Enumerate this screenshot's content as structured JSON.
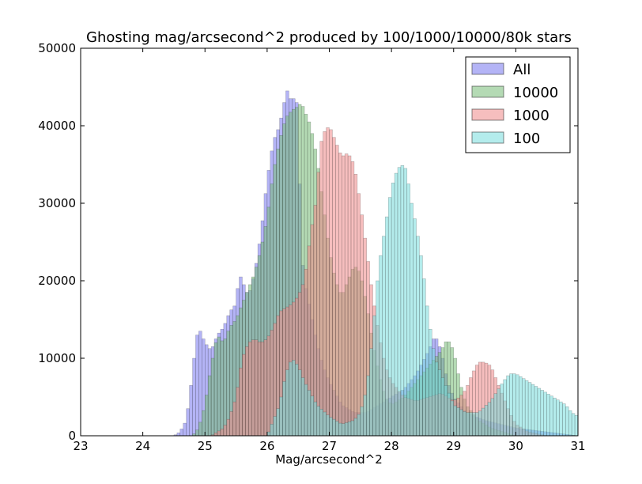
{
  "chart_data": {
    "type": "bar",
    "title": "Ghosting mag/arcsecond^2 produced by 100/1000/10000/80k stars",
    "xlabel": "Mag/arcsecond^2",
    "ylabel": "",
    "xlim": [
      23,
      31
    ],
    "ylim": [
      0,
      50000
    ],
    "xticks": [
      "23",
      "24",
      "25",
      "26",
      "27",
      "28",
      "29",
      "30",
      "31"
    ],
    "yticks": [
      "0",
      "10000",
      "20000",
      "30000",
      "40000",
      "50000"
    ],
    "bin_width": 0.05,
    "legend_position": "top-right",
    "series": [
      {
        "name": "All",
        "color": "#7777ee",
        "points": [
          [
            24.5,
            0
          ],
          [
            24.6,
            500
          ],
          [
            24.7,
            2000
          ],
          [
            24.8,
            8000
          ],
          [
            24.85,
            12000
          ],
          [
            24.9,
            14000
          ],
          [
            25.0,
            12000
          ],
          [
            25.1,
            11000
          ],
          [
            25.2,
            13000
          ],
          [
            25.3,
            14000
          ],
          [
            25.4,
            16000
          ],
          [
            25.5,
            17000
          ],
          [
            25.55,
            21000
          ],
          [
            25.6,
            20000
          ],
          [
            25.7,
            18000
          ],
          [
            25.8,
            21000
          ],
          [
            25.9,
            26000
          ],
          [
            26.0,
            33000
          ],
          [
            26.1,
            38000
          ],
          [
            26.2,
            40000
          ],
          [
            26.3,
            44000
          ],
          [
            26.35,
            45000
          ],
          [
            26.4,
            42000
          ],
          [
            26.45,
            45000
          ],
          [
            26.5,
            41000
          ],
          [
            26.55,
            24000
          ],
          [
            26.6,
            20000
          ],
          [
            26.7,
            16000
          ],
          [
            26.8,
            12000
          ],
          [
            26.9,
            9000
          ],
          [
            27.0,
            7000
          ],
          [
            27.2,
            4000
          ],
          [
            27.4,
            3000
          ],
          [
            27.6,
            3000
          ],
          [
            27.8,
            4000
          ],
          [
            28.0,
            5000
          ],
          [
            28.2,
            6000
          ],
          [
            28.4,
            8000
          ],
          [
            28.6,
            11000
          ],
          [
            28.7,
            13000
          ],
          [
            28.8,
            11000
          ],
          [
            28.9,
            7000
          ],
          [
            29.0,
            5000
          ],
          [
            29.2,
            3000
          ],
          [
            29.5,
            2000
          ],
          [
            30.0,
            1000
          ],
          [
            30.5,
            500
          ],
          [
            31.0,
            0
          ]
        ]
      },
      {
        "name": "10000",
        "color": "#77bb77",
        "points": [
          [
            24.8,
            0
          ],
          [
            24.9,
            1000
          ],
          [
            25.0,
            4000
          ],
          [
            25.1,
            9000
          ],
          [
            25.2,
            13000
          ],
          [
            25.3,
            12000
          ],
          [
            25.4,
            14000
          ],
          [
            25.5,
            15000
          ],
          [
            25.6,
            17000
          ],
          [
            25.7,
            19000
          ],
          [
            25.8,
            21000
          ],
          [
            25.9,
            24000
          ],
          [
            26.0,
            28000
          ],
          [
            26.1,
            34000
          ],
          [
            26.2,
            38000
          ],
          [
            26.3,
            41000
          ],
          [
            26.4,
            42000
          ],
          [
            26.5,
            42500
          ],
          [
            26.55,
            43000
          ],
          [
            26.6,
            42000
          ],
          [
            26.7,
            40000
          ],
          [
            26.8,
            36000
          ],
          [
            26.9,
            30000
          ],
          [
            27.0,
            24000
          ],
          [
            27.1,
            20000
          ],
          [
            27.2,
            18000
          ],
          [
            27.3,
            20000
          ],
          [
            27.4,
            22000
          ],
          [
            27.5,
            21000
          ],
          [
            27.6,
            17000
          ],
          [
            27.7,
            12000
          ],
          [
            27.8,
            8000
          ],
          [
            27.9,
            5000
          ],
          [
            28.0,
            4000
          ],
          [
            28.2,
            5000
          ],
          [
            28.4,
            7000
          ],
          [
            28.6,
            9000
          ],
          [
            28.8,
            11000
          ],
          [
            28.9,
            12500
          ],
          [
            29.0,
            11000
          ],
          [
            29.1,
            7000
          ],
          [
            29.2,
            4000
          ],
          [
            29.4,
            2000
          ],
          [
            29.6,
            1000
          ],
          [
            30.0,
            0
          ]
        ]
      },
      {
        "name": "1000",
        "color": "#ee8888",
        "points": [
          [
            25.1,
            0
          ],
          [
            25.2,
            500
          ],
          [
            25.3,
            1000
          ],
          [
            25.4,
            2500
          ],
          [
            25.5,
            5000
          ],
          [
            25.6,
            10000
          ],
          [
            25.7,
            12000
          ],
          [
            25.8,
            12500
          ],
          [
            25.9,
            12000
          ],
          [
            26.0,
            12500
          ],
          [
            26.1,
            14000
          ],
          [
            26.2,
            16000
          ],
          [
            26.3,
            16500
          ],
          [
            26.4,
            17000
          ],
          [
            26.5,
            18000
          ],
          [
            26.6,
            20000
          ],
          [
            26.7,
            26000
          ],
          [
            26.8,
            31000
          ],
          [
            26.85,
            37000
          ],
          [
            26.9,
            39000
          ],
          [
            27.0,
            40000
          ],
          [
            27.1,
            38000
          ],
          [
            27.2,
            36000
          ],
          [
            27.3,
            36500
          ],
          [
            27.4,
            35000
          ],
          [
            27.5,
            30000
          ],
          [
            27.6,
            24000
          ],
          [
            27.7,
            18000
          ],
          [
            27.8,
            13000
          ],
          [
            27.9,
            9000
          ],
          [
            28.0,
            7000
          ],
          [
            28.2,
            5000
          ],
          [
            28.4,
            4500
          ],
          [
            28.6,
            5000
          ],
          [
            28.8,
            5500
          ],
          [
            28.9,
            5000
          ],
          [
            29.0,
            4500
          ],
          [
            29.1,
            5000
          ],
          [
            29.2,
            6000
          ],
          [
            29.3,
            8000
          ],
          [
            29.4,
            9500
          ],
          [
            29.5,
            9500
          ],
          [
            29.6,
            9000
          ],
          [
            29.7,
            7000
          ],
          [
            29.8,
            5000
          ],
          [
            29.9,
            3000
          ],
          [
            30.0,
            1500
          ],
          [
            30.2,
            500
          ],
          [
            30.5,
            0
          ]
        ]
      },
      {
        "name": "100",
        "color": "#77dddd",
        "points": [
          [
            26.0,
            0
          ],
          [
            26.2,
            4000
          ],
          [
            26.3,
            8000
          ],
          [
            26.4,
            10000
          ],
          [
            26.5,
            9000
          ],
          [
            26.6,
            7000
          ],
          [
            26.8,
            4000
          ],
          [
            27.0,
            2500
          ],
          [
            27.2,
            1500
          ],
          [
            27.4,
            2000
          ],
          [
            27.5,
            3000
          ],
          [
            27.6,
            6000
          ],
          [
            27.7,
            13000
          ],
          [
            27.75,
            18000
          ],
          [
            27.8,
            22000
          ],
          [
            27.9,
            27000
          ],
          [
            28.0,
            32000
          ],
          [
            28.1,
            34500
          ],
          [
            28.2,
            35000
          ],
          [
            28.25,
            34000
          ],
          [
            28.3,
            31000
          ],
          [
            28.4,
            27000
          ],
          [
            28.5,
            22000
          ],
          [
            28.6,
            15000
          ],
          [
            28.7,
            10000
          ],
          [
            28.8,
            8000
          ],
          [
            28.9,
            6000
          ],
          [
            29.0,
            4000
          ],
          [
            29.2,
            3000
          ],
          [
            29.4,
            3000
          ],
          [
            29.6,
            4500
          ],
          [
            29.8,
            7000
          ],
          [
            29.9,
            8000
          ],
          [
            30.0,
            8000
          ],
          [
            30.1,
            7500
          ],
          [
            30.2,
            7000
          ],
          [
            30.3,
            6500
          ],
          [
            30.4,
            6000
          ],
          [
            30.5,
            5500
          ],
          [
            30.6,
            5000
          ],
          [
            30.7,
            4500
          ],
          [
            30.8,
            4000
          ],
          [
            30.9,
            3000
          ],
          [
            31.0,
            2500
          ]
        ]
      }
    ]
  }
}
